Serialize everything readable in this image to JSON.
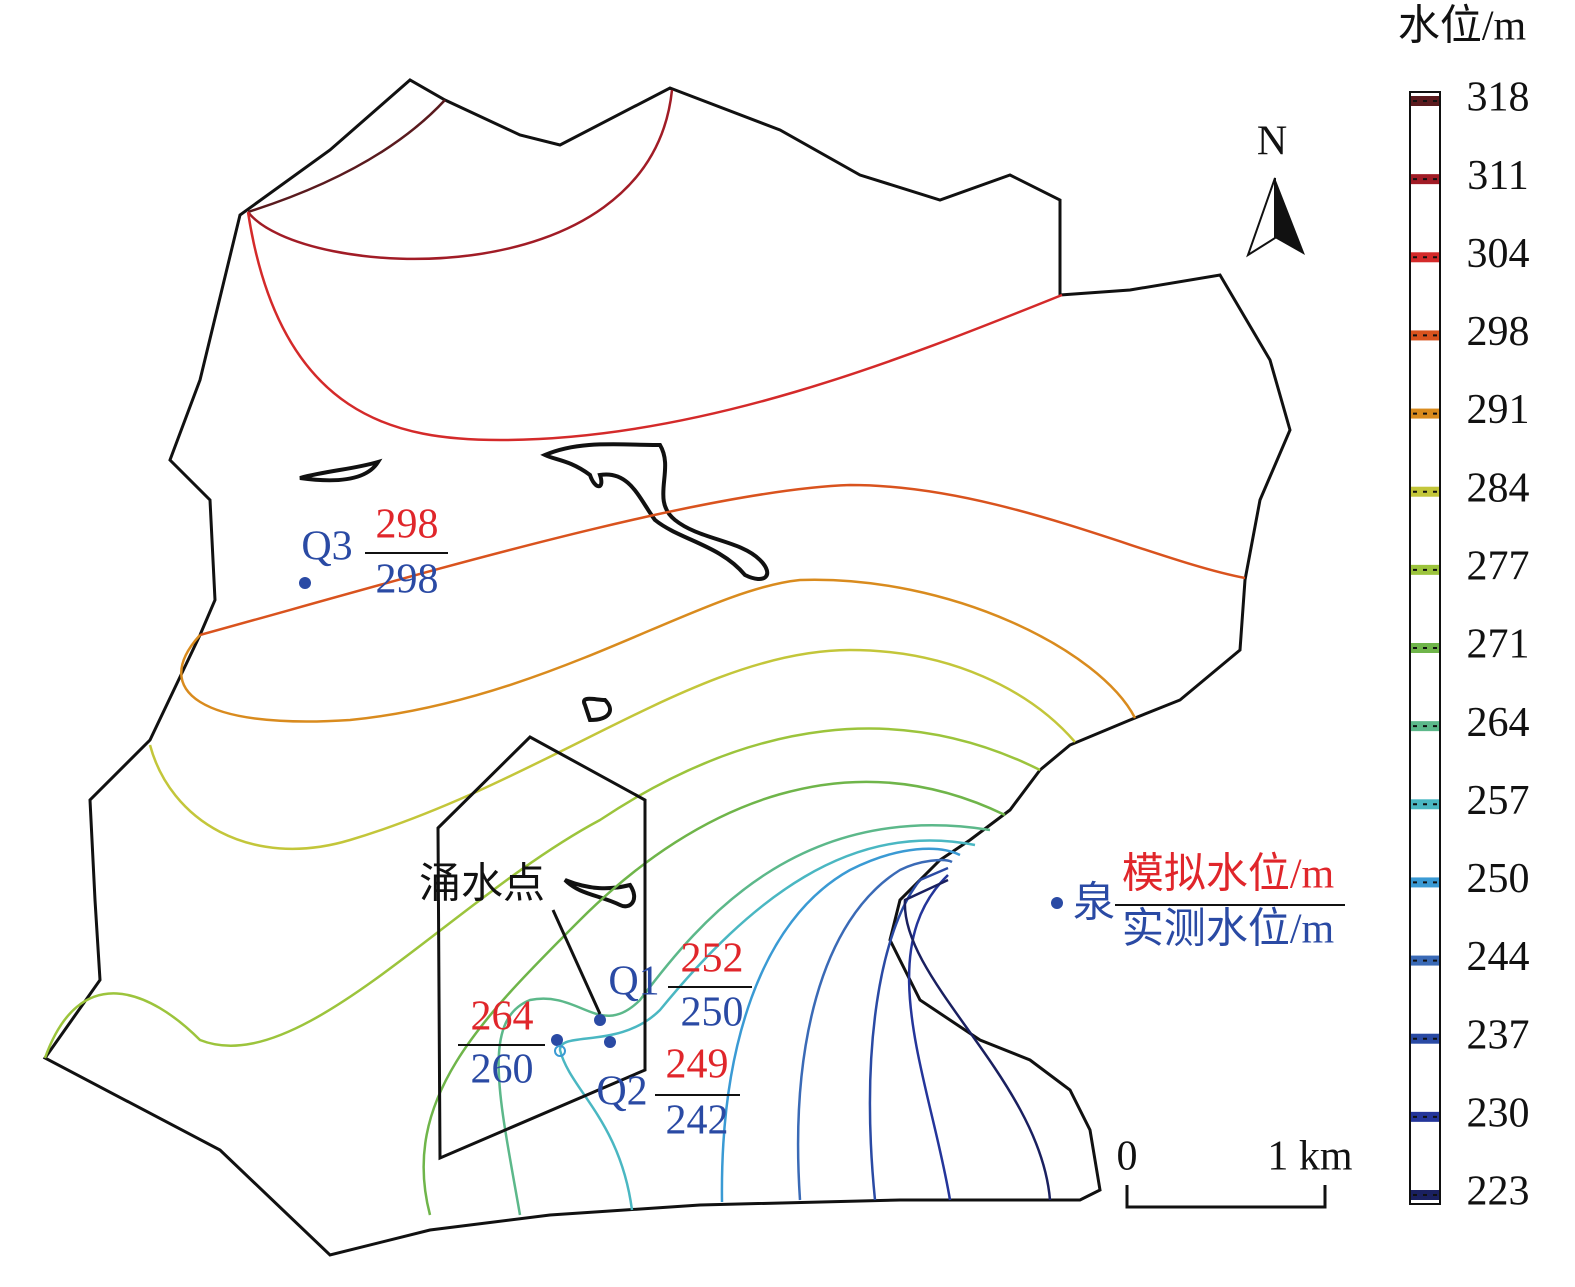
{
  "colorbar": {
    "title": "水位/m",
    "levels": [
      {
        "label": 318,
        "color": "#5a1a1e"
      },
      {
        "label": 311,
        "color": "#a11c26"
      },
      {
        "label": 304,
        "color": "#d42a2a"
      },
      {
        "label": 298,
        "color": "#d9531e"
      },
      {
        "label": 291,
        "color": "#d98b1e"
      },
      {
        "label": 284,
        "color": "#c3c63a"
      },
      {
        "label": 277,
        "color": "#9cc43c"
      },
      {
        "label": 271,
        "color": "#6fb54a"
      },
      {
        "label": 264,
        "color": "#5cb88a"
      },
      {
        "label": 257,
        "color": "#4ab7c2"
      },
      {
        "label": 250,
        "color": "#3a9ad4"
      },
      {
        "label": 244,
        "color": "#3a6ab6"
      },
      {
        "label": 237,
        "color": "#2a4aa4"
      },
      {
        "label": 230,
        "color": "#24359a"
      },
      {
        "label": 223,
        "color": "#1a2060"
      }
    ]
  },
  "north": "N",
  "wells": [
    {
      "name": "Q3",
      "simulated": 298,
      "measured": 298
    },
    {
      "name": "Q1",
      "simulated": 252,
      "measured": 250
    },
    {
      "name": "Q2",
      "simulated": 249,
      "measured": 242
    }
  ],
  "spring": {
    "simulated": 264,
    "measured": 260
  },
  "inrush_label": "涌水点",
  "legend": {
    "symbol_label": "泉",
    "simulated": "模拟水位/m",
    "measured": "实测水位/m"
  },
  "scale": {
    "start": "0",
    "end": "1 km"
  }
}
